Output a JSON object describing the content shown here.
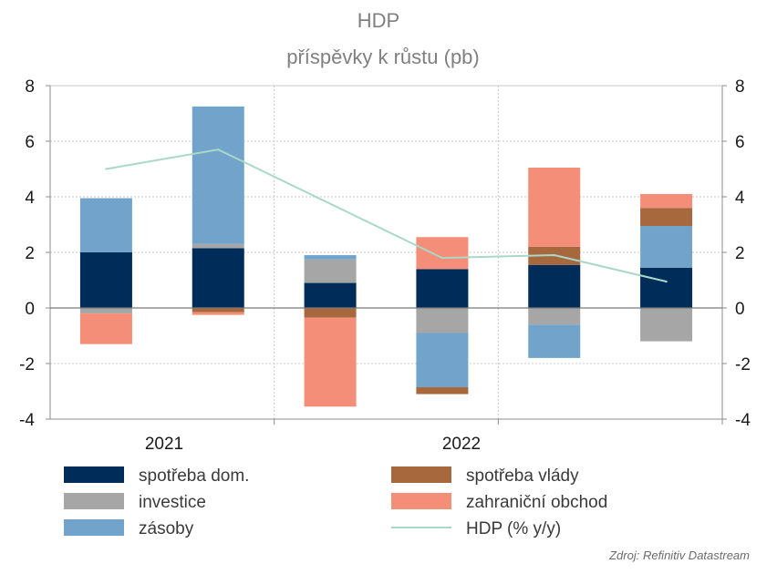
{
  "chart_data": {
    "type": "bar",
    "stacked": true,
    "title": "HDP",
    "subtitle": "příspěvky k růstu  (pb)",
    "x_tick_labels": [
      "2021",
      "2022"
    ],
    "periods": 6,
    "ylim": [
      -4,
      8
    ],
    "yticks": [
      8,
      6,
      4,
      2,
      0,
      -2,
      -4
    ],
    "y_tick_labels": [
      "8",
      "6",
      "4",
      "2",
      "0",
      "-2",
      "-4"
    ],
    "grid": true,
    "legend_position": "bottom",
    "series": [
      {
        "name": "spotřeba dom.",
        "color": "#002c5a",
        "values": [
          2.0,
          2.15,
          0.9,
          1.4,
          1.55,
          1.45
        ]
      },
      {
        "name": "investice",
        "color": "#a6a6a6",
        "values": [
          -0.2,
          0.15,
          0.85,
          -0.9,
          -0.6,
          -1.2
        ]
      },
      {
        "name": "zásoby",
        "color": "#72a4cb",
        "values": [
          1.95,
          4.95,
          0.15,
          -1.95,
          -1.2,
          1.5
        ]
      },
      {
        "name": "spotřeba vlády",
        "color": "#a7683d",
        "values": [
          0.0,
          -0.15,
          -0.35,
          -0.25,
          0.65,
          0.65
        ]
      },
      {
        "name": "zahraniční obchod",
        "color": "#f48e78",
        "values": [
          -1.1,
          -0.1,
          -3.2,
          1.15,
          2.85,
          0.5
        ]
      }
    ],
    "line": {
      "name": "HDP (% y/y)",
      "color": "#a9d8c8",
      "values": [
        5.0,
        5.7,
        null,
        1.8,
        1.9,
        0.95
      ]
    }
  },
  "source": "Zdroj: Refinitiv Datastream"
}
